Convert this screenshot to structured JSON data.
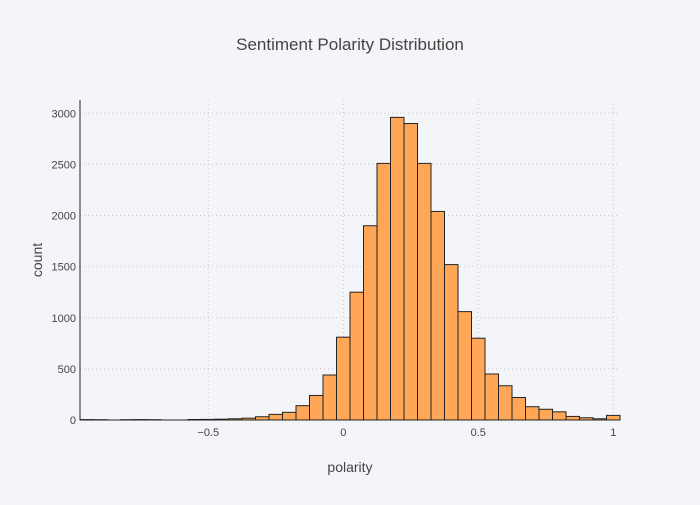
{
  "chart_data": {
    "type": "bar",
    "title": "Sentiment Polarity Distribution",
    "xlabel": "polarity",
    "ylabel": "count",
    "xlim": [
      -0.975,
      1.025
    ],
    "ylim": [
      0,
      3130
    ],
    "x_ticks": [
      -0.5,
      0,
      0.5,
      1
    ],
    "x_tick_labels": [
      "−0.5",
      "0",
      "0.5",
      "1"
    ],
    "y_ticks": [
      0,
      500,
      1000,
      1500,
      2000,
      2500,
      3000
    ],
    "y_tick_labels": [
      "0",
      "500",
      "1000",
      "1500",
      "2000",
      "2500",
      "3000"
    ],
    "grid": true,
    "bin_width": 0.05,
    "bin_starts": [
      -0.975,
      -0.925,
      -0.875,
      -0.825,
      -0.775,
      -0.725,
      -0.675,
      -0.625,
      -0.575,
      -0.525,
      -0.475,
      -0.425,
      -0.375,
      -0.325,
      -0.275,
      -0.225,
      -0.175,
      -0.125,
      -0.075,
      -0.025,
      0.025,
      0.075,
      0.125,
      0.175,
      0.225,
      0.275,
      0.325,
      0.375,
      0.425,
      0.475,
      0.525,
      0.575,
      0.625,
      0.675,
      0.725,
      0.775,
      0.825,
      0.875,
      0.925,
      0.975
    ],
    "values": [
      4,
      3,
      0,
      3,
      4,
      3,
      0,
      0,
      5,
      6,
      8,
      12,
      18,
      32,
      55,
      75,
      140,
      240,
      440,
      810,
      1250,
      1900,
      2510,
      2960,
      2900,
      2510,
      2040,
      1520,
      1060,
      800,
      450,
      335,
      220,
      130,
      105,
      80,
      35,
      22,
      12,
      45
    ]
  }
}
